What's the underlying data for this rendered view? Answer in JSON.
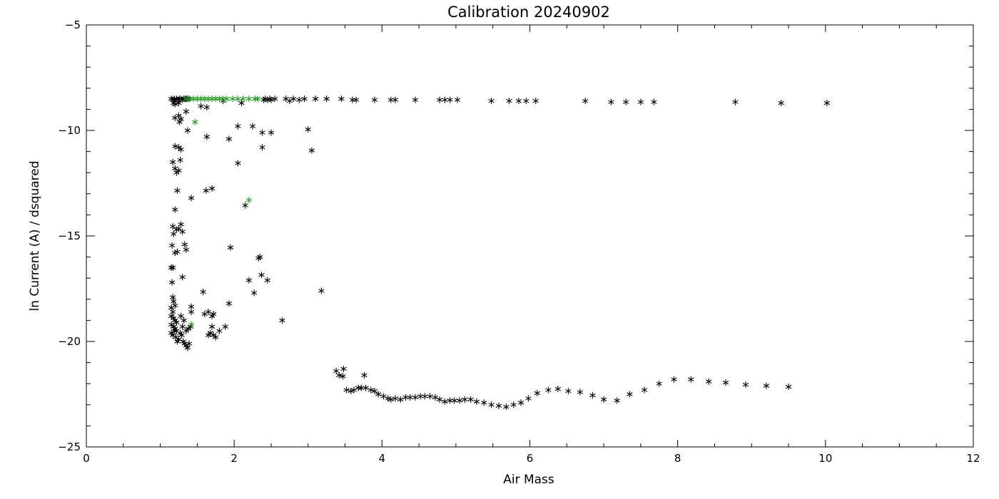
{
  "chart_data": {
    "type": "scatter",
    "title": "Calibration 20240902",
    "xlabel": "Air Mass",
    "ylabel": "ln Current (A) / dsquared",
    "xlim": [
      0,
      12
    ],
    "ylim": [
      -25,
      -5
    ],
    "xticks": [
      0,
      2,
      4,
      6,
      8,
      10,
      12
    ],
    "yticks": [
      -5,
      -10,
      -15,
      -20,
      -25
    ],
    "xtick_labels": [
      "0",
      "2",
      "4",
      "6",
      "8",
      "10",
      "12"
    ],
    "ytick_labels": [
      "−5",
      "−10",
      "−15",
      "−20",
      "−25"
    ],
    "grid": false,
    "marker": "asterisk",
    "series": [
      {
        "color": "#000000",
        "points": [
          [
            1.15,
            -8.5
          ],
          [
            1.17,
            -8.55
          ],
          [
            1.19,
            -8.5
          ],
          [
            1.2,
            -8.6
          ],
          [
            1.22,
            -8.5
          ],
          [
            1.24,
            -8.55
          ],
          [
            1.26,
            -8.5
          ],
          [
            1.28,
            -8.5
          ],
          [
            1.3,
            -8.55
          ],
          [
            1.32,
            -8.5
          ],
          [
            1.34,
            -8.5
          ],
          [
            1.36,
            -8.5
          ],
          [
            1.38,
            -8.5
          ],
          [
            1.4,
            -8.5
          ],
          [
            1.18,
            -8.7
          ],
          [
            1.2,
            -8.75
          ],
          [
            1.25,
            -8.7
          ],
          [
            1.55,
            -8.85
          ],
          [
            1.63,
            -8.9
          ],
          [
            1.85,
            -8.6
          ],
          [
            2.1,
            -8.7
          ],
          [
            1.2,
            -9.4
          ],
          [
            1.25,
            -9.3
          ],
          [
            1.28,
            -9.45
          ],
          [
            1.26,
            -9.6
          ],
          [
            1.35,
            -9.1
          ],
          [
            1.37,
            -10.0
          ],
          [
            1.63,
            -10.3
          ],
          [
            1.93,
            -10.4
          ],
          [
            2.05,
            -9.8
          ],
          [
            2.25,
            -9.8
          ],
          [
            2.38,
            -10.1
          ],
          [
            2.5,
            -10.1
          ],
          [
            2.38,
            -10.8
          ],
          [
            3.0,
            -9.95
          ],
          [
            3.05,
            -10.95
          ],
          [
            1.17,
            -11.5
          ],
          [
            1.2,
            -11.8
          ],
          [
            1.22,
            -12.0
          ],
          [
            1.25,
            -11.9
          ],
          [
            1.27,
            -11.4
          ],
          [
            1.2,
            -10.75
          ],
          [
            1.25,
            -10.8
          ],
          [
            1.28,
            -10.9
          ],
          [
            2.05,
            -11.55
          ],
          [
            1.23,
            -12.85
          ],
          [
            1.42,
            -13.2
          ],
          [
            1.62,
            -12.85
          ],
          [
            1.7,
            -12.75
          ],
          [
            2.15,
            -13.55
          ],
          [
            1.2,
            -13.75
          ],
          [
            1.17,
            -14.55
          ],
          [
            1.18,
            -14.9
          ],
          [
            1.22,
            -14.7
          ],
          [
            1.25,
            -14.65
          ],
          [
            1.28,
            -14.45
          ],
          [
            1.3,
            -14.8
          ],
          [
            1.33,
            -15.4
          ],
          [
            1.35,
            -15.65
          ],
          [
            1.16,
            -15.45
          ],
          [
            1.2,
            -15.8
          ],
          [
            1.23,
            -15.75
          ],
          [
            1.95,
            -15.55
          ],
          [
            2.33,
            -16.05
          ],
          [
            2.35,
            -16.0
          ],
          [
            1.3,
            -16.95
          ],
          [
            2.2,
            -17.1
          ],
          [
            2.37,
            -16.85
          ],
          [
            2.45,
            -17.1
          ],
          [
            2.27,
            -17.7
          ],
          [
            3.18,
            -17.6
          ],
          [
            1.15,
            -16.5
          ],
          [
            1.17,
            -16.5
          ],
          [
            1.16,
            -17.2
          ],
          [
            1.17,
            -17.9
          ],
          [
            1.18,
            -18.1
          ],
          [
            1.2,
            -18.3
          ],
          [
            1.15,
            -18.4
          ],
          [
            1.17,
            -18.6
          ],
          [
            1.15,
            -18.8
          ],
          [
            1.18,
            -18.9
          ],
          [
            1.2,
            -19.0
          ],
          [
            1.22,
            -19.1
          ],
          [
            1.15,
            -19.2
          ],
          [
            1.18,
            -19.3
          ],
          [
            1.2,
            -19.4
          ],
          [
            1.22,
            -19.5
          ],
          [
            1.15,
            -19.6
          ],
          [
            1.17,
            -19.7
          ],
          [
            1.19,
            -19.5
          ],
          [
            1.21,
            -19.8
          ],
          [
            1.23,
            -20.0
          ],
          [
            1.25,
            -19.9
          ],
          [
            1.27,
            -19.6
          ],
          [
            1.29,
            -19.7
          ],
          [
            1.31,
            -20.0
          ],
          [
            1.33,
            -20.1
          ],
          [
            1.35,
            -20.2
          ],
          [
            1.37,
            -20.3
          ],
          [
            1.39,
            -20.1
          ],
          [
            1.3,
            -19.3
          ],
          [
            1.32,
            -19.0
          ],
          [
            1.28,
            -18.8
          ],
          [
            1.35,
            -19.5
          ],
          [
            1.38,
            -19.4
          ],
          [
            1.41,
            -19.3
          ],
          [
            1.42,
            -18.35
          ],
          [
            1.42,
            -18.6
          ],
          [
            1.58,
            -17.65
          ],
          [
            1.6,
            -18.7
          ],
          [
            1.65,
            -18.6
          ],
          [
            1.7,
            -18.8
          ],
          [
            1.72,
            -18.7
          ],
          [
            1.68,
            -19.6
          ],
          [
            1.72,
            -19.7
          ],
          [
            1.75,
            -19.8
          ],
          [
            1.7,
            -19.3
          ],
          [
            1.65,
            -19.7
          ],
          [
            1.8,
            -19.5
          ],
          [
            1.88,
            -19.3
          ],
          [
            1.93,
            -18.2
          ],
          [
            2.65,
            -19.0
          ],
          [
            2.4,
            -8.55
          ],
          [
            2.42,
            -8.5
          ],
          [
            2.45,
            -8.55
          ],
          [
            2.48,
            -8.5
          ],
          [
            2.5,
            -8.55
          ],
          [
            2.55,
            -8.5
          ],
          [
            2.7,
            -8.5
          ],
          [
            2.75,
            -8.6
          ],
          [
            2.8,
            -8.5
          ],
          [
            2.88,
            -8.55
          ],
          [
            2.95,
            -8.5
          ],
          [
            3.1,
            -8.5
          ],
          [
            3.25,
            -8.5
          ],
          [
            3.45,
            -8.5
          ],
          [
            3.6,
            -8.55
          ],
          [
            3.65,
            -8.55
          ],
          [
            3.9,
            -8.55
          ],
          [
            4.12,
            -8.55
          ],
          [
            4.18,
            -8.55
          ],
          [
            4.45,
            -8.55
          ],
          [
            4.78,
            -8.55
          ],
          [
            4.85,
            -8.55
          ],
          [
            4.92,
            -8.55
          ],
          [
            5.02,
            -8.55
          ],
          [
            5.48,
            -8.6
          ],
          [
            5.72,
            -8.6
          ],
          [
            5.85,
            -8.6
          ],
          [
            5.95,
            -8.6
          ],
          [
            6.08,
            -8.6
          ],
          [
            6.75,
            -8.6
          ],
          [
            7.1,
            -8.65
          ],
          [
            7.3,
            -8.65
          ],
          [
            7.5,
            -8.65
          ],
          [
            7.68,
            -8.65
          ],
          [
            8.78,
            -8.65
          ],
          [
            9.4,
            -8.7
          ],
          [
            10.02,
            -8.7
          ],
          [
            3.38,
            -21.4
          ],
          [
            3.42,
            -21.6
          ],
          [
            3.47,
            -21.65
          ],
          [
            3.48,
            -21.3
          ],
          [
            3.52,
            -22.3
          ],
          [
            3.58,
            -22.35
          ],
          [
            3.62,
            -22.3
          ],
          [
            3.68,
            -22.2
          ],
          [
            3.72,
            -22.2
          ],
          [
            3.78,
            -22.2
          ],
          [
            3.76,
            -21.6
          ],
          [
            3.85,
            -22.3
          ],
          [
            3.9,
            -22.35
          ],
          [
            3.95,
            -22.5
          ],
          [
            4.02,
            -22.6
          ],
          [
            4.08,
            -22.7
          ],
          [
            4.12,
            -22.75
          ],
          [
            4.18,
            -22.7
          ],
          [
            4.25,
            -22.75
          ],
          [
            4.32,
            -22.65
          ],
          [
            4.38,
            -22.65
          ],
          [
            4.45,
            -22.65
          ],
          [
            4.52,
            -22.6
          ],
          [
            4.58,
            -22.6
          ],
          [
            4.65,
            -22.6
          ],
          [
            4.72,
            -22.65
          ],
          [
            4.78,
            -22.75
          ],
          [
            4.85,
            -22.85
          ],
          [
            4.92,
            -22.8
          ],
          [
            4.98,
            -22.8
          ],
          [
            5.05,
            -22.8
          ],
          [
            5.12,
            -22.75
          ],
          [
            5.2,
            -22.75
          ],
          [
            5.28,
            -22.85
          ],
          [
            5.38,
            -22.9
          ],
          [
            5.48,
            -23.0
          ],
          [
            5.58,
            -23.05
          ],
          [
            5.68,
            -23.1
          ],
          [
            5.78,
            -23.0
          ],
          [
            5.88,
            -22.9
          ],
          [
            5.98,
            -22.7
          ],
          [
            6.1,
            -22.45
          ],
          [
            6.25,
            -22.3
          ],
          [
            6.38,
            -22.25
          ],
          [
            6.52,
            -22.35
          ],
          [
            6.68,
            -22.4
          ],
          [
            6.85,
            -22.55
          ],
          [
            7.0,
            -22.75
          ],
          [
            7.18,
            -22.8
          ],
          [
            7.35,
            -22.5
          ],
          [
            7.55,
            -22.3
          ],
          [
            7.75,
            -22.0
          ],
          [
            7.95,
            -21.8
          ],
          [
            8.18,
            -21.8
          ],
          [
            8.42,
            -21.9
          ],
          [
            8.65,
            -21.95
          ],
          [
            8.92,
            -22.05
          ],
          [
            9.2,
            -22.1
          ],
          [
            9.5,
            -22.15
          ]
        ]
      },
      {
        "color": "#1a9e1a",
        "points": [
          [
            1.35,
            -8.5
          ],
          [
            1.4,
            -8.5
          ],
          [
            1.45,
            -8.5
          ],
          [
            1.5,
            -8.5
          ],
          [
            1.55,
            -8.5
          ],
          [
            1.6,
            -8.5
          ],
          [
            1.65,
            -8.5
          ],
          [
            1.7,
            -8.5
          ],
          [
            1.75,
            -8.5
          ],
          [
            1.8,
            -8.5
          ],
          [
            1.85,
            -8.5
          ],
          [
            1.9,
            -8.5
          ],
          [
            1.98,
            -8.5
          ],
          [
            2.05,
            -8.5
          ],
          [
            2.12,
            -8.5
          ],
          [
            2.2,
            -8.5
          ],
          [
            2.28,
            -8.5
          ],
          [
            2.32,
            -8.5
          ],
          [
            1.47,
            -9.6
          ],
          [
            2.2,
            -13.3
          ],
          [
            1.42,
            -19.2
          ]
        ]
      }
    ]
  }
}
